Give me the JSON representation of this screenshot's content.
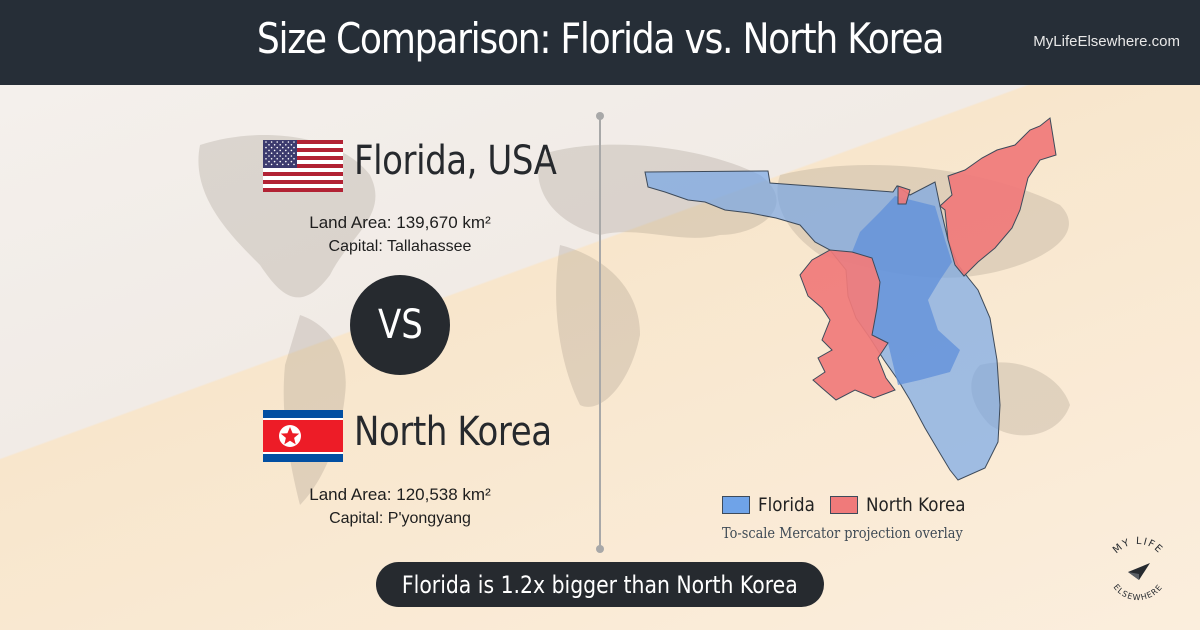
{
  "header": {
    "title": "Size Comparison: Florida vs. North Korea",
    "site": "MyLifeElsewhere.com"
  },
  "left": {
    "country1": {
      "name": "Florida, USA",
      "area_label": "Land Area:",
      "area_value": "139,670 km²",
      "capital_label": "Capital:",
      "capital_value": "Tallahassee",
      "flag": "us-flag"
    },
    "vs_label": "VS",
    "country2": {
      "name": "North Korea",
      "area_label": "Land Area:",
      "area_value": "120,538 km²",
      "capital_label": "Capital:",
      "capital_value": "P'yongyang",
      "flag": "north-korea-flag"
    }
  },
  "map": {
    "legend": [
      {
        "label": "Florida",
        "color": "#6fa3e8"
      },
      {
        "label": "North Korea",
        "color": "#f07a7a"
      }
    ],
    "overlap_color": "#5f8fd9",
    "note": "To-scale Mercator projection overlay"
  },
  "verdict": "Florida is 1.2x bigger than North Korea",
  "logo": {
    "text_top": "MY LIFE",
    "text_bottom": "ELSEWHERE",
    "icon": "paper-plane-icon"
  },
  "colors": {
    "header_bg": "#262e37",
    "dark_pill": "#262a2f",
    "us_red": "#b22234",
    "us_blue": "#3c3b6e",
    "nk_red": "#ed1c27",
    "nk_blue": "#024fa2"
  }
}
